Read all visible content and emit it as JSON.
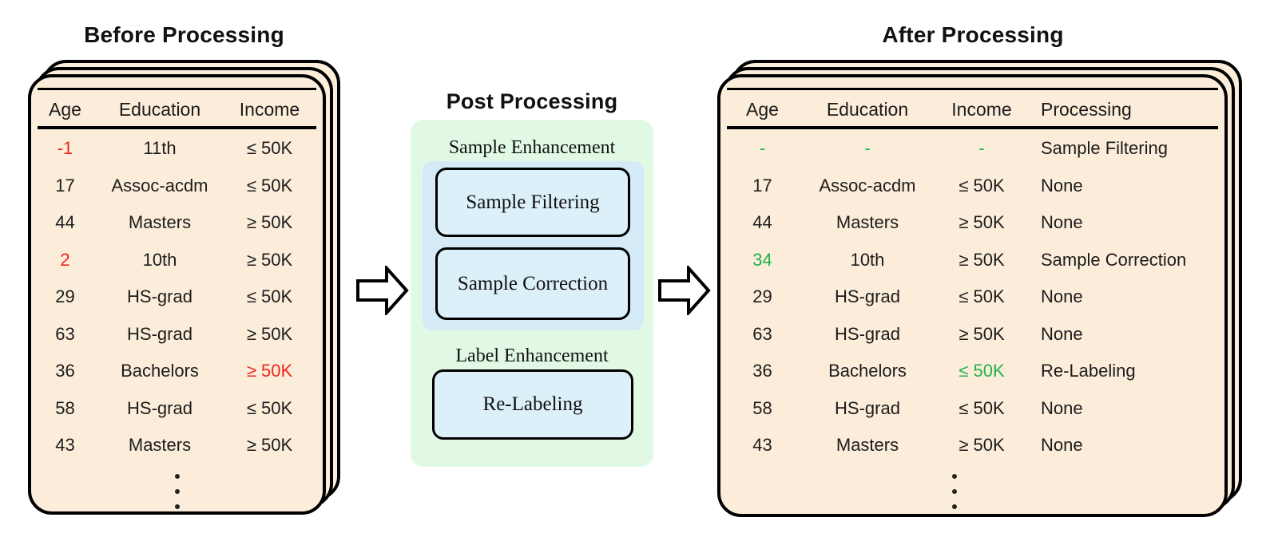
{
  "titles": {
    "before": "Before Processing",
    "post": "Post Processing",
    "after": "After Processing"
  },
  "before_table": {
    "columns": [
      "Age",
      "Education",
      "Income"
    ],
    "rows": [
      [
        {
          "t": "-1",
          "c": "red"
        },
        {
          "t": "11th"
        },
        {
          "t": "≤ 50K"
        }
      ],
      [
        {
          "t": "17"
        },
        {
          "t": "Assoc-acdm"
        },
        {
          "t": "≤ 50K"
        }
      ],
      [
        {
          "t": "44"
        },
        {
          "t": "Masters"
        },
        {
          "t": "≥ 50K"
        }
      ],
      [
        {
          "t": "2",
          "c": "red"
        },
        {
          "t": "10th"
        },
        {
          "t": "≥ 50K"
        }
      ],
      [
        {
          "t": "29"
        },
        {
          "t": "HS-grad"
        },
        {
          "t": "≤ 50K"
        }
      ],
      [
        {
          "t": "63"
        },
        {
          "t": "HS-grad"
        },
        {
          "t": "≥ 50K"
        }
      ],
      [
        {
          "t": "36"
        },
        {
          "t": "Bachelors"
        },
        {
          "t": "≥ 50K",
          "c": "red"
        }
      ],
      [
        {
          "t": "58"
        },
        {
          "t": "HS-grad"
        },
        {
          "t": "≤ 50K"
        }
      ],
      [
        {
          "t": "43"
        },
        {
          "t": "Masters"
        },
        {
          "t": "≥ 50K"
        }
      ]
    ],
    "ellipsis": "⋮"
  },
  "post": {
    "groups": [
      {
        "label": "Sample Enhancement",
        "boxes": [
          "Sample Filtering",
          "Sample Correction"
        ]
      },
      {
        "label": "Label Enhancement",
        "boxes": [
          "Re-Labeling"
        ]
      }
    ]
  },
  "after_table": {
    "columns": [
      "Age",
      "Education",
      "Income",
      "Processing"
    ],
    "rows": [
      [
        {
          "t": "-",
          "c": "green"
        },
        {
          "t": "-",
          "c": "green"
        },
        {
          "t": "-",
          "c": "green"
        },
        {
          "t": "Sample Filtering"
        }
      ],
      [
        {
          "t": "17"
        },
        {
          "t": "Assoc-acdm"
        },
        {
          "t": "≤ 50K"
        },
        {
          "t": "None"
        }
      ],
      [
        {
          "t": "44"
        },
        {
          "t": "Masters"
        },
        {
          "t": "≥ 50K"
        },
        {
          "t": "None"
        }
      ],
      [
        {
          "t": "34",
          "c": "green"
        },
        {
          "t": "10th"
        },
        {
          "t": "≥ 50K"
        },
        {
          "t": "Sample Correction"
        }
      ],
      [
        {
          "t": "29"
        },
        {
          "t": "HS-grad"
        },
        {
          "t": "≤ 50K"
        },
        {
          "t": "None"
        }
      ],
      [
        {
          "t": "63"
        },
        {
          "t": "HS-grad"
        },
        {
          "t": "≥ 50K"
        },
        {
          "t": "None"
        }
      ],
      [
        {
          "t": "36"
        },
        {
          "t": "Bachelors"
        },
        {
          "t": "≤ 50K",
          "c": "green"
        },
        {
          "t": "Re-Labeling"
        }
      ],
      [
        {
          "t": "58"
        },
        {
          "t": "HS-grad"
        },
        {
          "t": "≤ 50K"
        },
        {
          "t": "None"
        }
      ],
      [
        {
          "t": "43"
        },
        {
          "t": "Masters"
        },
        {
          "t": "≥ 50K"
        },
        {
          "t": "None"
        }
      ]
    ],
    "ellipsis": "⋮"
  },
  "colors": {
    "red": "#F2241A",
    "green": "#22B14C",
    "card_bg": "#FBEDDA",
    "panel_green": "#E1F9E4",
    "panel_blue": "#D4EBF7",
    "box_blue": "#DCF0FA"
  }
}
